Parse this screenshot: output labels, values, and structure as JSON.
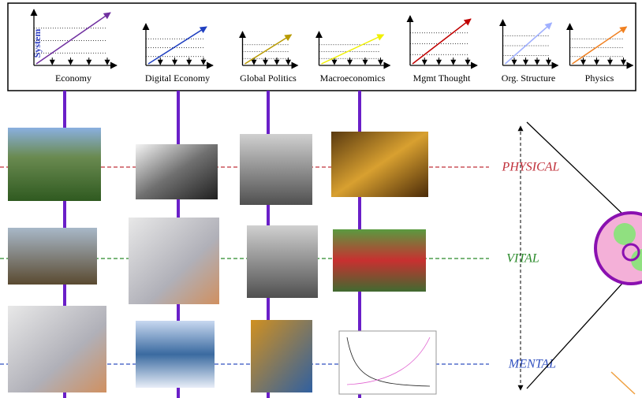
{
  "system_label": "System",
  "charts": [
    {
      "label": "Economy",
      "color": "#7030a0"
    },
    {
      "label": "Digital Economy",
      "color": "#2040c0"
    },
    {
      "label": "Global Politics",
      "color": "#b89a00"
    },
    {
      "label": "Macroeconomics",
      "color": "#f0f000"
    },
    {
      "label": "Mgmt Thought",
      "color": "#c00000"
    },
    {
      "label": "Org. Structure",
      "color": "#a0b0ff"
    },
    {
      "label": "Physics",
      "color": "#f08020"
    }
  ],
  "levels": [
    {
      "label": "PHYSICAL",
      "color": "#c0303a"
    },
    {
      "label": "VITAL",
      "color": "#2a8a2a"
    },
    {
      "label": "MENTAL",
      "color": "#3050c0"
    }
  ]
}
